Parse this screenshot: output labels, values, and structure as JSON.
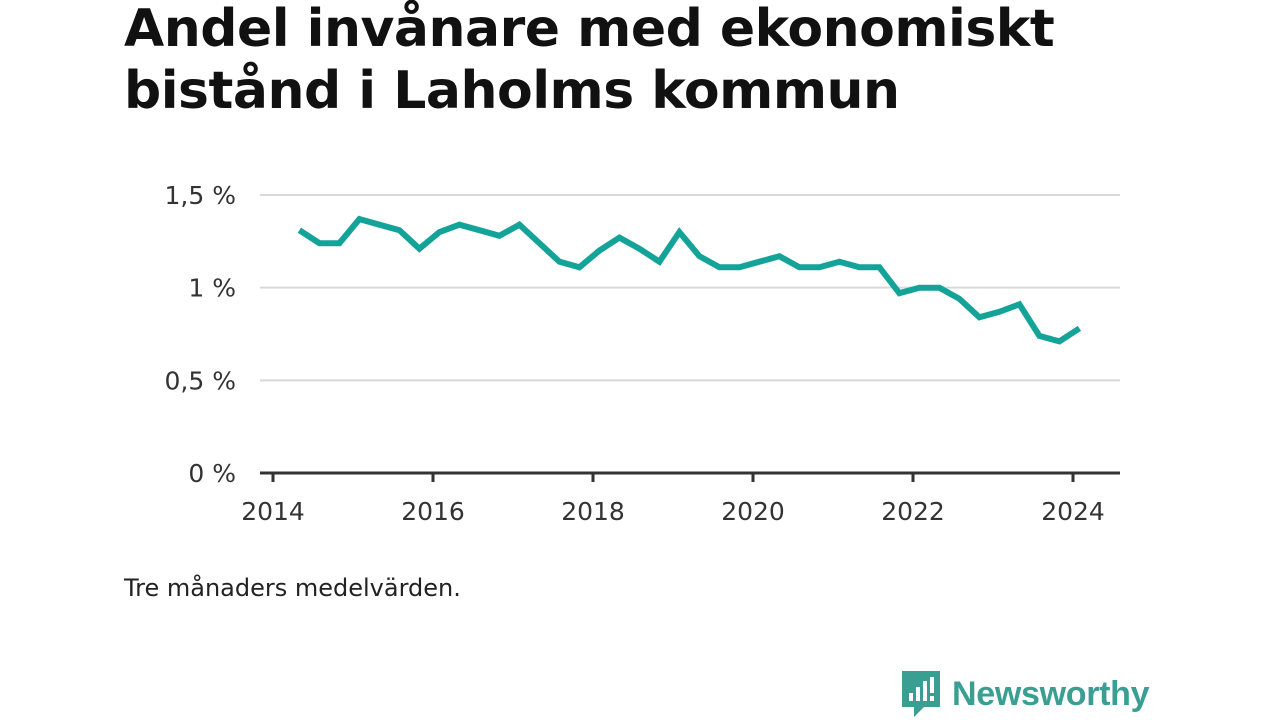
{
  "title": "Andel invånare med ekonomiskt bistånd i Laholms kommun",
  "note": "Tre månaders medelvärden.",
  "brand": {
    "name": "Newsworthy",
    "icon": "newsworthy-logo-icon",
    "color": "#3a9e92"
  },
  "chart_data": {
    "type": "line",
    "title": "Andel invånare med ekonomiskt bistånd i Laholms kommun",
    "xlabel": "",
    "ylabel": "",
    "ylim": [
      0,
      1.5
    ],
    "xlim": [
      2014,
      2024.6
    ],
    "y_ticks": [
      0,
      0.5,
      1,
      1.5
    ],
    "y_tick_labels": [
      "0 %",
      "0,5 %",
      "1 %",
      "1,5 %"
    ],
    "x_ticks": [
      2014,
      2016,
      2018,
      2020,
      2022,
      2024
    ],
    "x_tick_labels": [
      "2014",
      "2016",
      "2018",
      "2020",
      "2022",
      "2024"
    ],
    "grid": true,
    "line_color": "#14a398",
    "series": [
      {
        "x": [
          2014.33,
          2014.58,
          2014.83,
          2015.08,
          2015.33,
          2015.58,
          2015.83,
          2016.08,
          2016.33,
          2016.58,
          2016.83,
          2017.08,
          2017.33,
          2017.58,
          2017.83,
          2018.08,
          2018.33,
          2018.58,
          2018.83,
          2019.08,
          2019.33,
          2019.58,
          2019.83,
          2020.08,
          2020.33,
          2020.58,
          2020.83,
          2021.08,
          2021.33,
          2021.58,
          2021.83,
          2022.08,
          2022.33,
          2022.58,
          2022.83,
          2023.08,
          2023.33,
          2023.58,
          2023.83,
          2024.08
        ],
        "values": [
          1.31,
          1.24,
          1.24,
          1.37,
          1.34,
          1.31,
          1.21,
          1.3,
          1.34,
          1.31,
          1.28,
          1.34,
          1.24,
          1.14,
          1.11,
          1.2,
          1.27,
          1.21,
          1.14,
          1.3,
          1.17,
          1.11,
          1.11,
          1.14,
          1.17,
          1.11,
          1.11,
          1.14,
          1.11,
          1.11,
          0.97,
          1.0,
          1.0,
          0.94,
          0.84,
          0.87,
          0.91,
          0.74,
          0.71,
          0.78
        ]
      }
    ]
  }
}
